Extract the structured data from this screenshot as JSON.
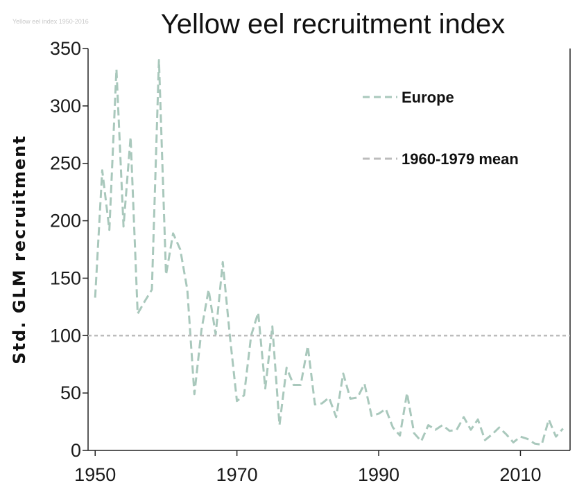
{
  "chart_data": {
    "type": "line",
    "title": "Yellow eel recruitment index",
    "faint_header": "Yellow eel index 1950-2016",
    "ylabel": "Std. GLM recruitment",
    "xlabel": "",
    "xlim": [
      1949,
      2017
    ],
    "ylim": [
      0,
      350
    ],
    "xticks": [
      1950,
      1970,
      1990,
      2010
    ],
    "yticks": [
      0,
      50,
      100,
      150,
      200,
      250,
      300,
      350
    ],
    "grid": false,
    "legend_position": "top-right",
    "series": [
      {
        "name": "Europe",
        "color": "#a9c8bc",
        "style": "dashed",
        "x": [
          1950,
          1951,
          1952,
          1953,
          1954,
          1955,
          1956,
          1957,
          1958,
          1959,
          1960,
          1961,
          1962,
          1963,
          1964,
          1965,
          1966,
          1967,
          1968,
          1969,
          1970,
          1971,
          1972,
          1973,
          1974,
          1975,
          1976,
          1977,
          1978,
          1979,
          1980,
          1981,
          1982,
          1983,
          1984,
          1985,
          1986,
          1987,
          1988,
          1989,
          1990,
          1991,
          1992,
          1993,
          1994,
          1995,
          1996,
          1997,
          1998,
          1999,
          2000,
          2001,
          2002,
          2003,
          2004,
          2005,
          2006,
          2007,
          2008,
          2009,
          2010,
          2011,
          2012,
          2013,
          2014,
          2015,
          2016
        ],
        "y": [
          133,
          244,
          192,
          332,
          195,
          273,
          119,
          130,
          140,
          340,
          153,
          189,
          175,
          140,
          49,
          105,
          140,
          101,
          164,
          100,
          43,
          48,
          100,
          120,
          54,
          108,
          22,
          72,
          57,
          57,
          91,
          40,
          41,
          46,
          29,
          67,
          45,
          46,
          58,
          30,
          32,
          36,
          20,
          13,
          50,
          15,
          8,
          22,
          18,
          22,
          17,
          18,
          29,
          18,
          27,
          9,
          14,
          20,
          14,
          7,
          12,
          10,
          6,
          5,
          27,
          12,
          19
        ]
      },
      {
        "name": "1960-1979 mean",
        "color": "#bcbcbc",
        "style": "dashed",
        "x": [
          1949,
          2017
        ],
        "y": [
          100,
          100
        ]
      }
    ]
  }
}
